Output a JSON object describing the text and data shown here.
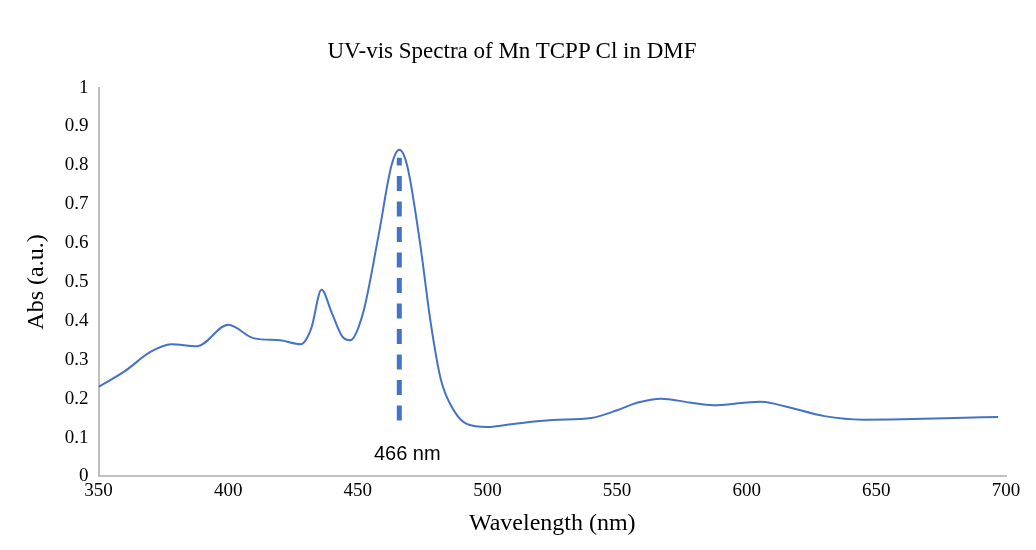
{
  "chart_data": {
    "type": "line",
    "title": "UV-vis Spectra of Mn TCPP Cl in DMF",
    "xlabel": "Wavelength (nm)",
    "ylabel": "Abs (a.u.)",
    "series": [
      {
        "color": "#4472c4",
        "x": [
          350,
          360,
          370,
          378,
          388,
          400,
          410,
          420,
          428,
          432,
          436,
          440,
          444,
          447,
          452,
          458,
          463,
          466,
          469,
          474,
          478,
          482,
          487,
          492,
          500,
          510,
          525,
          540,
          550,
          558,
          567,
          578,
          587,
          600,
          605,
          615,
          630,
          645,
          660,
          680,
          697
        ],
        "values": [
          0.23,
          0.27,
          0.32,
          0.34,
          0.335,
          0.39,
          0.355,
          0.35,
          0.34,
          0.38,
          0.48,
          0.42,
          0.36,
          0.35,
          0.42,
          0.62,
          0.8,
          0.84,
          0.8,
          0.6,
          0.4,
          0.25,
          0.17,
          0.135,
          0.127,
          0.135,
          0.145,
          0.15,
          0.17,
          0.19,
          0.2,
          0.19,
          0.183,
          0.19,
          0.192,
          0.18,
          0.155,
          0.146,
          0.147,
          0.15,
          0.153
        ]
      }
    ],
    "xlim": [
      350,
      700
    ],
    "xticks": [
      350,
      400,
      450,
      500,
      550,
      600,
      650,
      700
    ],
    "ylim": [
      0,
      1
    ],
    "yticks": [
      0,
      0.1,
      0.2,
      0.3,
      0.4,
      0.5,
      0.6,
      0.7,
      0.8,
      0.9,
      1
    ],
    "ref_lines": [
      {
        "axis": "x",
        "value": 466,
        "label": "466 nm",
        "color": "#4472c4",
        "line_style": "dashed"
      }
    ],
    "grid": false,
    "legend": false,
    "marker": "none",
    "line_style": "solid"
  }
}
